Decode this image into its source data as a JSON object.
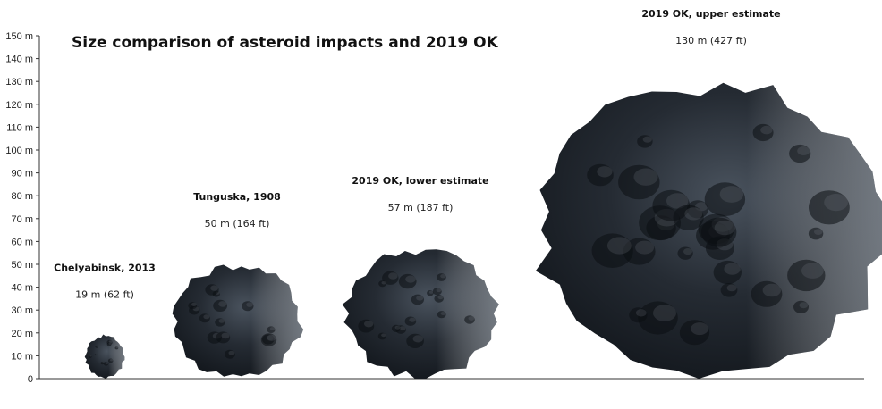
{
  "chart_data": {
    "type": "bar",
    "title": "Size comparison of asteroid impacts and 2019 OK",
    "ylim": [
      0,
      150
    ],
    "y_ticks": [
      "0",
      "10 m",
      "20 m",
      "30 m",
      "40 m",
      "50 m",
      "60 m",
      "70 m",
      "80 m",
      "90 m",
      "100 m",
      "110 m",
      "120 m",
      "130 m",
      "140 m",
      "150 m"
    ],
    "items": [
      {
        "name": "Chelyabinsk, 2013",
        "size_label": "19 m (62 ft)",
        "value": 19
      },
      {
        "name": "Tunguska, 1908",
        "size_label": "50 m (164 ft)",
        "value": 50
      },
      {
        "name": "2019 OK, lower estimate",
        "size_label": "57 m (187 ft)",
        "value": 57
      },
      {
        "name": "2019 OK, upper estimate",
        "size_label": "130 m (427 ft)",
        "value": 130
      }
    ]
  },
  "colors": {
    "rock_dark": "#151a20",
    "rock_mid": "#2b323b",
    "rock_light": "#8a929c",
    "axis": "#333333"
  }
}
